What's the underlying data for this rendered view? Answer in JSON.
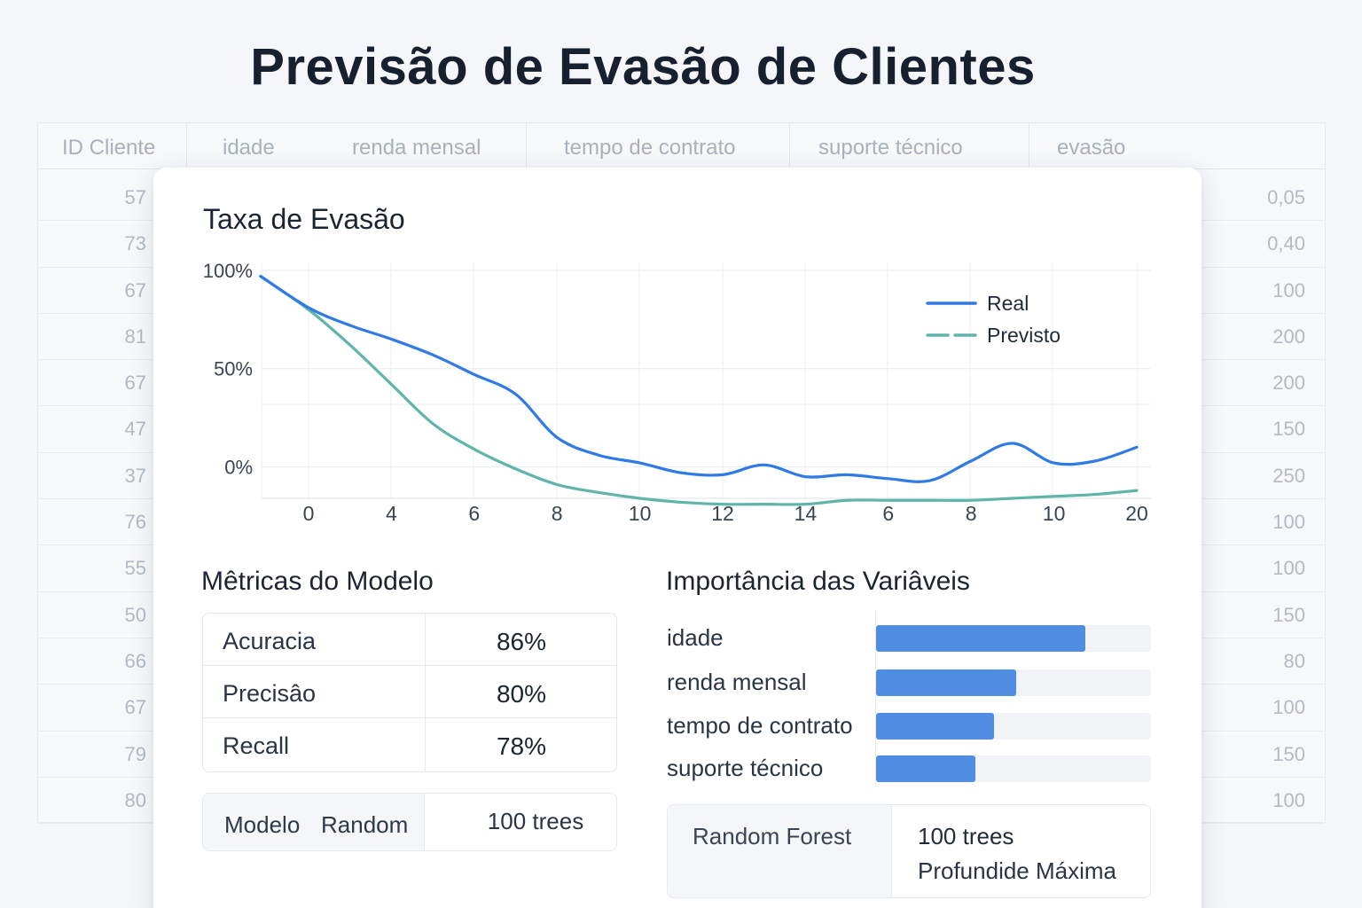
{
  "page": {
    "title": "Previsão de Evasão de Clientes"
  },
  "background_table": {
    "columns": [
      "ID Cliente",
      "idade",
      "renda mensal",
      "tempo de contrato",
      "suporte técnico",
      "evasão"
    ],
    "left_values": [
      "57",
      "73",
      "67",
      "81",
      "67",
      "47",
      "37",
      "76",
      "55",
      "50",
      "66",
      "67",
      "79",
      "80"
    ],
    "right_values": [
      "0,05",
      "0,40",
      "100",
      "200",
      "200",
      "150",
      "250",
      "100",
      "100",
      "150",
      "80",
      "100",
      "150",
      "100"
    ]
  },
  "chart": {
    "title": "Taxa de Evasão"
  },
  "chart_data": {
    "type": "line",
    "title": "Taxa de Evasão",
    "xlabel": "",
    "ylabel": "",
    "x_tick_labels": [
      "0",
      "4",
      "6",
      "8",
      "10",
      "12",
      "14",
      "6",
      "8",
      "10",
      "20"
    ],
    "y_tick_labels": [
      "100%",
      "50%",
      "0%"
    ],
    "y_ticks": [
      100,
      50,
      0
    ],
    "ylim": [
      -16,
      104
    ],
    "grid": true,
    "legend_position": "top-right",
    "x_index": [
      -0.58,
      0,
      0.5,
      1,
      1.5,
      2,
      2.5,
      3,
      3.5,
      4,
      4.5,
      5,
      5.5,
      6,
      6.5,
      7,
      7.5,
      8,
      8.5,
      9,
      9.5,
      10
    ],
    "series": [
      {
        "name": "Real",
        "color": "#2f7ae5",
        "values": [
          97,
          81,
          72,
          65,
          57,
          47,
          37,
          15,
          6,
          2,
          -3,
          -4,
          1,
          -5,
          -4,
          -6,
          -7,
          3,
          12,
          2,
          3,
          10
        ]
      },
      {
        "name": "Previsto",
        "color": "#5fb5a8",
        "values": [
          97,
          80,
          62,
          42,
          22,
          9,
          -1,
          -9,
          -13,
          -16,
          -18,
          -19,
          -19,
          -19,
          -17,
          -17,
          -17,
          -17,
          -16,
          -15,
          -14,
          -12
        ]
      }
    ]
  },
  "metrics": {
    "title": "Mêtricas do Modelo",
    "rows": [
      {
        "label": "Acuracia",
        "value": "86%"
      },
      {
        "label": "Precisâo",
        "value": "80%"
      },
      {
        "label": "Recall",
        "value": "78%"
      }
    ],
    "model_label_1": "Modelo",
    "model_label_2": "Random",
    "model_value": "100 trees"
  },
  "importance": {
    "title": "Importância das Variâveis",
    "items": [
      {
        "label": "idade",
        "value": 0.76
      },
      {
        "label": "renda mensal",
        "value": 0.51
      },
      {
        "label": "tempo de contrato",
        "value": 0.43
      },
      {
        "label": "suporte técnico",
        "value": 0.36
      }
    ],
    "bar_color": "#4f8de3",
    "model_name": "Random Forest",
    "model_line_1": "100 trees",
    "model_line_2": "Profundide Máxima"
  }
}
